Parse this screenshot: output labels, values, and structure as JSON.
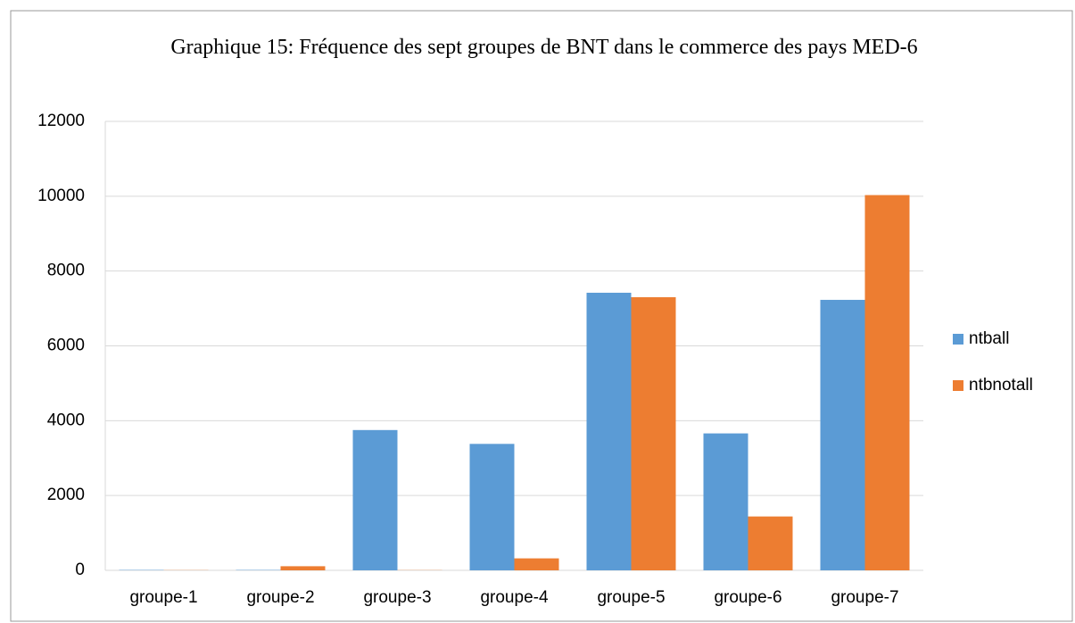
{
  "chart_data": {
    "type": "bar",
    "title": "Graphique 15: Fréquence des sept groupes de BNT dans le commerce des pays MED-6",
    "categories": [
      "groupe-1",
      "groupe-2",
      "groupe-3",
      "groupe-4",
      "groupe-5",
      "groupe-6",
      "groupe-7"
    ],
    "series": [
      {
        "name": "ntball",
        "color": "#5b9bd5",
        "values": [
          10,
          10,
          3750,
          3380,
          7420,
          3660,
          7230
        ]
      },
      {
        "name": "ntbnotall",
        "color": "#ed7d31",
        "values": [
          5,
          110,
          5,
          320,
          7300,
          1440,
          10030
        ]
      }
    ],
    "ylim": [
      0,
      12000
    ],
    "yticks": [
      0,
      2000,
      4000,
      6000,
      8000,
      10000,
      12000
    ],
    "grid": true,
    "legend": "right"
  }
}
